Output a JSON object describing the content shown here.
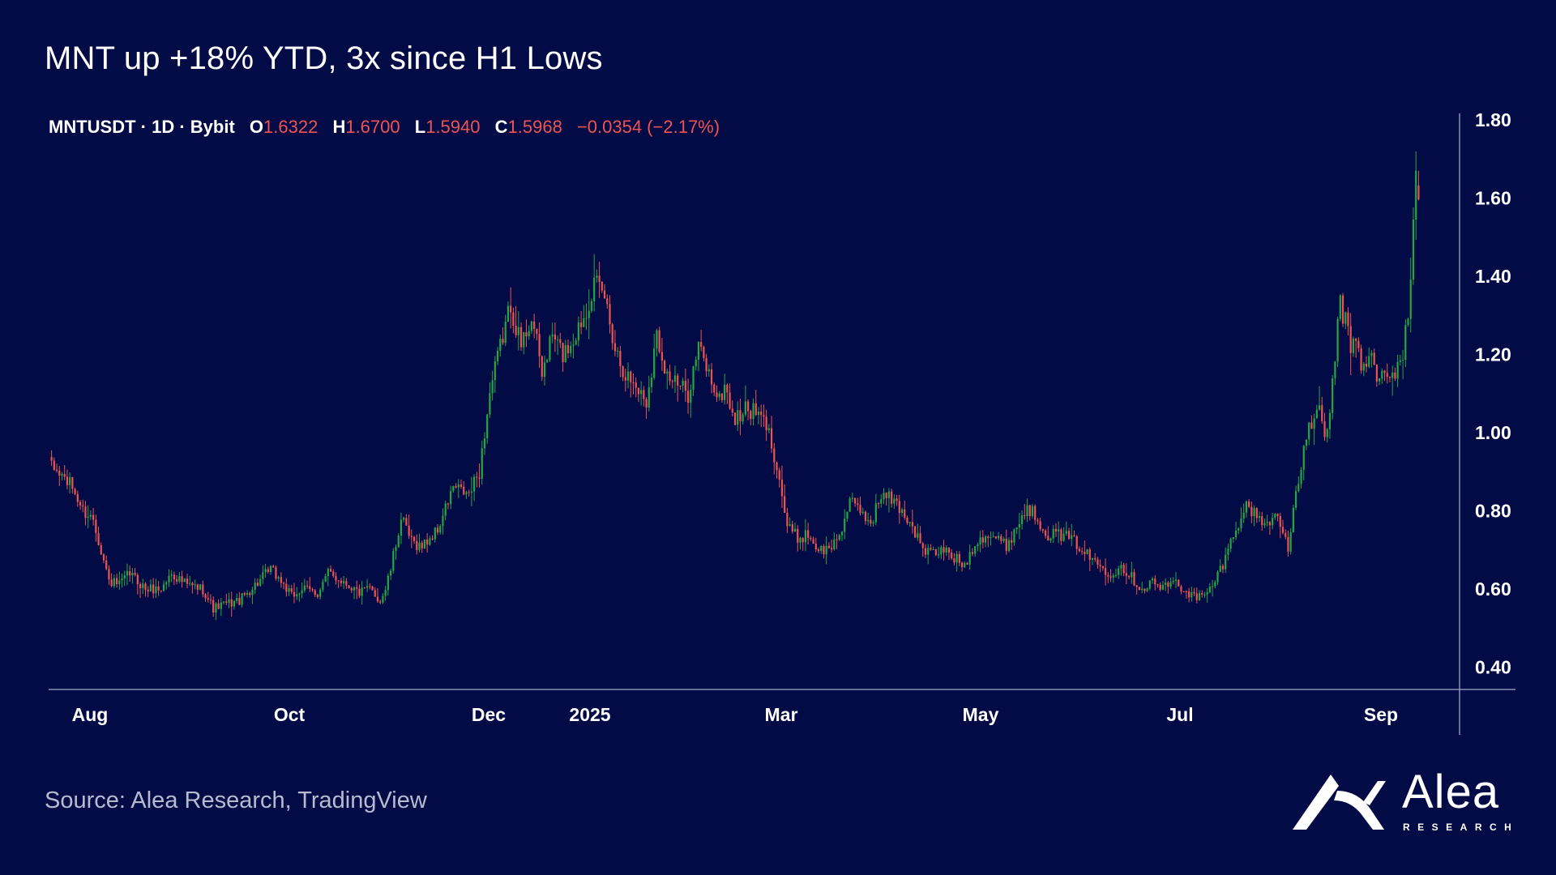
{
  "title": "MNT up +18% YTD, 3x since H1 Lows",
  "ohlc": {
    "symbol": "MNTUSDT · 1D · Bybit",
    "o_label": "O",
    "o_value": "1.6322",
    "h_label": "H",
    "h_value": "1.6700",
    "l_label": "L",
    "l_value": "1.5940",
    "c_label": "C",
    "c_value": "1.5968",
    "change": "−0.0354 (−2.17%)"
  },
  "source": "Source: Alea Research, TradingView",
  "logo": {
    "name": "Alea",
    "sub": "RESEARCH"
  },
  "colors": {
    "background": "#020b45",
    "up": "#26a641",
    "down": "#ef5350",
    "axis": "#8a90b8"
  },
  "chart_data": {
    "type": "candlestick",
    "title": "MNT up +18% YTD, 3x since H1 Lows",
    "symbol": "MNTUSDT",
    "interval": "1D",
    "exchange": "Bybit",
    "ylim": [
      0.345,
      1.8
    ],
    "y_ticks": [
      "1.80",
      "1.60",
      "1.40",
      "1.20",
      "1.00",
      "0.80",
      "0.60",
      "0.40"
    ],
    "x_ticks": [
      "Aug",
      "Oct",
      "Dec",
      "2025",
      "Mar",
      "May",
      "Jul",
      "Sep"
    ],
    "close_path": [
      [
        0,
        0.91
      ],
      [
        4,
        0.89
      ],
      [
        8,
        0.86
      ],
      [
        12,
        0.8
      ],
      [
        16,
        0.78
      ],
      [
        22,
        0.62
      ],
      [
        26,
        0.61
      ],
      [
        30,
        0.64
      ],
      [
        36,
        0.6
      ],
      [
        42,
        0.6
      ],
      [
        46,
        0.64
      ],
      [
        52,
        0.61
      ],
      [
        58,
        0.6
      ],
      [
        62,
        0.55
      ],
      [
        66,
        0.56
      ],
      [
        72,
        0.57
      ],
      [
        78,
        0.61
      ],
      [
        84,
        0.65
      ],
      [
        88,
        0.62
      ],
      [
        92,
        0.58
      ],
      [
        96,
        0.6
      ],
      [
        102,
        0.59
      ],
      [
        106,
        0.64
      ],
      [
        112,
        0.62
      ],
      [
        118,
        0.59
      ],
      [
        122,
        0.6
      ],
      [
        126,
        0.57
      ],
      [
        128,
        0.6
      ],
      [
        130,
        0.65
      ],
      [
        134,
        0.78
      ],
      [
        138,
        0.72
      ],
      [
        142,
        0.71
      ],
      [
        148,
        0.75
      ],
      [
        154,
        0.86
      ],
      [
        160,
        0.84
      ],
      [
        164,
        0.9
      ],
      [
        168,
        1.1
      ],
      [
        172,
        1.22
      ],
      [
        176,
        1.33
      ],
      [
        180,
        1.22
      ],
      [
        184,
        1.3
      ],
      [
        188,
        1.15
      ],
      [
        192,
        1.25
      ],
      [
        196,
        1.2
      ],
      [
        200,
        1.24
      ],
      [
        204,
        1.3
      ],
      [
        208,
        1.38
      ],
      [
        212,
        1.35
      ],
      [
        216,
        1.22
      ],
      [
        220,
        1.15
      ],
      [
        224,
        1.12
      ],
      [
        228,
        1.08
      ],
      [
        232,
        1.25
      ],
      [
        236,
        1.15
      ],
      [
        240,
        1.12
      ],
      [
        244,
        1.1
      ],
      [
        248,
        1.22
      ],
      [
        252,
        1.15
      ],
      [
        256,
        1.08
      ],
      [
        258,
        1.12
      ],
      [
        262,
        1.03
      ],
      [
        266,
        1.06
      ],
      [
        270,
        1.05
      ],
      [
        274,
        1.02
      ],
      [
        278,
        0.92
      ],
      [
        282,
        0.76
      ],
      [
        286,
        0.73
      ],
      [
        290,
        0.74
      ],
      [
        294,
        0.7
      ],
      [
        298,
        0.7
      ],
      [
        302,
        0.74
      ],
      [
        306,
        0.82
      ],
      [
        310,
        0.8
      ],
      [
        314,
        0.77
      ],
      [
        318,
        0.84
      ],
      [
        322,
        0.83
      ],
      [
        326,
        0.8
      ],
      [
        330,
        0.76
      ],
      [
        334,
        0.7
      ],
      [
        338,
        0.69
      ],
      [
        342,
        0.7
      ],
      [
        346,
        0.68
      ],
      [
        350,
        0.66
      ],
      [
        354,
        0.72
      ],
      [
        358,
        0.74
      ],
      [
        362,
        0.73
      ],
      [
        366,
        0.71
      ],
      [
        370,
        0.76
      ],
      [
        374,
        0.81
      ],
      [
        378,
        0.78
      ],
      [
        382,
        0.74
      ],
      [
        386,
        0.74
      ],
      [
        390,
        0.73
      ],
      [
        394,
        0.71
      ],
      [
        398,
        0.68
      ],
      [
        402,
        0.66
      ],
      [
        406,
        0.64
      ],
      [
        410,
        0.66
      ],
      [
        414,
        0.63
      ],
      [
        418,
        0.6
      ],
      [
        422,
        0.62
      ],
      [
        426,
        0.6
      ],
      [
        430,
        0.62
      ],
      [
        434,
        0.6
      ],
      [
        438,
        0.58
      ],
      [
        442,
        0.58
      ],
      [
        446,
        0.62
      ],
      [
        450,
        0.68
      ],
      [
        454,
        0.76
      ],
      [
        458,
        0.81
      ],
      [
        462,
        0.79
      ],
      [
        466,
        0.76
      ],
      [
        470,
        0.8
      ],
      [
        474,
        0.7
      ],
      [
        478,
        0.88
      ],
      [
        482,
        1.02
      ],
      [
        486,
        1.05
      ],
      [
        488,
        0.98
      ],
      [
        490,
        1.05
      ],
      [
        492,
        1.2
      ],
      [
        494,
        1.33
      ],
      [
        496,
        1.28
      ],
      [
        498,
        1.22
      ],
      [
        500,
        1.25
      ],
      [
        502,
        1.18
      ],
      [
        504,
        1.15
      ],
      [
        506,
        1.22
      ],
      [
        508,
        1.12
      ],
      [
        510,
        1.15
      ],
      [
        512,
        1.14
      ],
      [
        514,
        1.14
      ],
      [
        516,
        1.18
      ],
      [
        518,
        1.2
      ],
      [
        520,
        1.3
      ],
      [
        522,
        1.52
      ],
      [
        523,
        1.67
      ],
      [
        524,
        1.5968
      ]
    ],
    "last_candle": {
      "open": 1.6322,
      "high": 1.67,
      "low": 1.594,
      "close": 1.5968,
      "change": -0.0354,
      "change_pct": -2.17
    }
  }
}
